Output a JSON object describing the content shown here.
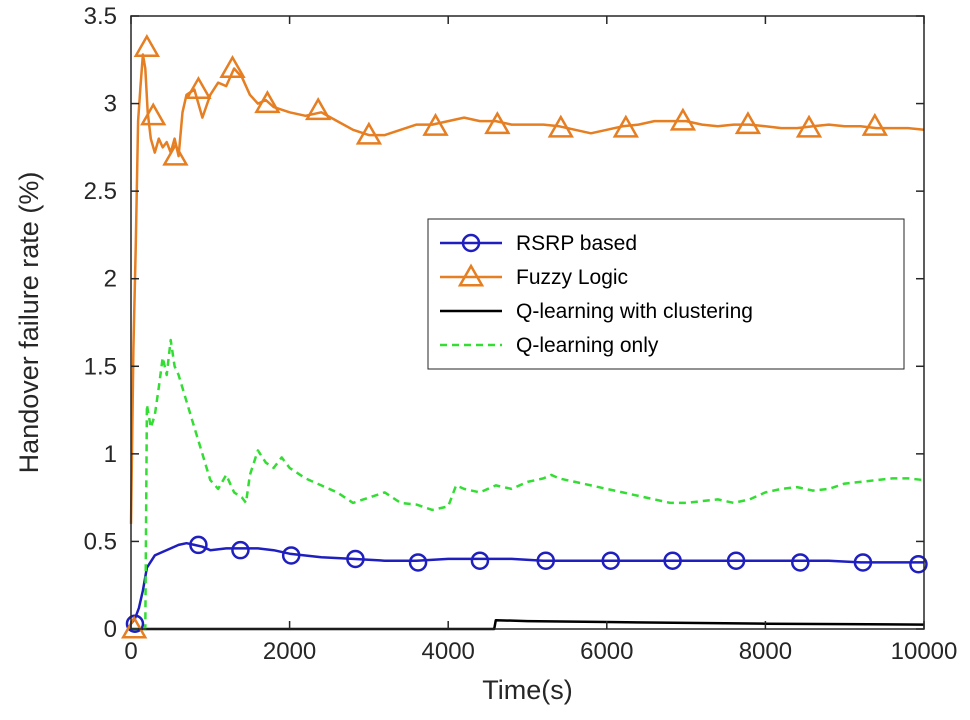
{
  "chart_data": {
    "type": "line",
    "title": "",
    "xlabel": "Time(s)",
    "ylabel": "Handover failure rate  (%)",
    "xlim": [
      0,
      10000
    ],
    "ylim": [
      0,
      3.5
    ],
    "xticks": [
      0,
      2000,
      4000,
      6000,
      8000,
      10000
    ],
    "xtick_labels": [
      "0",
      "2000",
      "4000",
      "6000",
      "8000",
      "10000"
    ],
    "yticks": [
      0,
      0.5,
      1,
      1.5,
      2,
      2.5,
      3,
      3.5
    ],
    "ytick_labels": [
      "0",
      "0.5",
      "1",
      "1.5",
      "2",
      "2.5",
      "3",
      "3.5"
    ],
    "grid": false,
    "legend_position": "center-right",
    "series": [
      {
        "name": "RSRP based",
        "color": "#1f1fbf",
        "line_style": "solid",
        "marker": "circle",
        "x": [
          0,
          50,
          100,
          150,
          200,
          300,
          400,
          500,
          600,
          700,
          800,
          900,
          1000,
          1200,
          1400,
          1600,
          1800,
          2000,
          2400,
          2800,
          3200,
          3600,
          4000,
          4400,
          4800,
          5200,
          5600,
          6000,
          6400,
          6800,
          7200,
          7600,
          8000,
          8400,
          8800,
          9200,
          9600,
          10000
        ],
        "y": [
          0.03,
          0.06,
          0.12,
          0.22,
          0.35,
          0.42,
          0.44,
          0.46,
          0.48,
          0.49,
          0.48,
          0.47,
          0.45,
          0.46,
          0.46,
          0.46,
          0.45,
          0.43,
          0.41,
          0.4,
          0.39,
          0.39,
          0.4,
          0.4,
          0.4,
          0.39,
          0.39,
          0.39,
          0.39,
          0.39,
          0.39,
          0.39,
          0.39,
          0.39,
          0.39,
          0.38,
          0.38,
          0.38
        ],
        "marker_x": [
          50,
          850,
          1380,
          2020,
          2830,
          3620,
          4400,
          5230,
          6050,
          6830,
          7630,
          8440,
          9230,
          9930
        ],
        "marker_y": [
          0.03,
          0.48,
          0.45,
          0.42,
          0.4,
          0.38,
          0.39,
          0.39,
          0.39,
          0.39,
          0.39,
          0.38,
          0.38,
          0.37
        ]
      },
      {
        "name": "Fuzzy Logic",
        "color": "#e67e22",
        "line_style": "solid",
        "marker": "triangle",
        "x": [
          0,
          30,
          60,
          90,
          120,
          150,
          180,
          210,
          250,
          300,
          350,
          400,
          450,
          500,
          550,
          600,
          650,
          700,
          800,
          900,
          1000,
          1100,
          1200,
          1300,
          1400,
          1500,
          1600,
          1700,
          1800,
          2000,
          2200,
          2400,
          2600,
          2800,
          3000,
          3200,
          3400,
          3600,
          3800,
          4000,
          4200,
          4400,
          4600,
          4800,
          5000,
          5200,
          5400,
          5600,
          5800,
          6000,
          6200,
          6400,
          6600,
          6800,
          7000,
          7200,
          7400,
          7600,
          7800,
          8000,
          8200,
          8400,
          8600,
          8800,
          9000,
          9200,
          9400,
          9600,
          9800,
          10000
        ],
        "y": [
          0.6,
          1.6,
          2.2,
          2.9,
          3.1,
          3.28,
          3.2,
          2.95,
          2.8,
          2.72,
          2.8,
          2.75,
          2.78,
          2.72,
          2.8,
          2.7,
          2.95,
          3.05,
          3.08,
          2.92,
          3.05,
          3.12,
          3.1,
          3.2,
          3.15,
          3.05,
          3.0,
          3.02,
          2.98,
          2.95,
          2.93,
          2.95,
          2.9,
          2.85,
          2.82,
          2.82,
          2.85,
          2.88,
          2.88,
          2.9,
          2.92,
          2.9,
          2.9,
          2.88,
          2.88,
          2.88,
          2.87,
          2.85,
          2.83,
          2.85,
          2.87,
          2.88,
          2.9,
          2.9,
          2.9,
          2.88,
          2.87,
          2.88,
          2.88,
          2.87,
          2.86,
          2.86,
          2.87,
          2.88,
          2.87,
          2.87,
          2.86,
          2.86,
          2.86,
          2.85
        ],
        "marker_x": [
          40,
          200,
          280,
          560,
          850,
          1280,
          1720,
          2360,
          3000,
          3840,
          4620,
          5420,
          6240,
          6960,
          7780,
          8550,
          9380
        ],
        "marker_y": [
          0.0,
          3.32,
          2.93,
          2.7,
          3.08,
          3.2,
          3.0,
          2.96,
          2.82,
          2.87,
          2.88,
          2.86,
          2.86,
          2.9,
          2.88,
          2.86,
          2.87
        ]
      },
      {
        "name": "Q-learning with clustering",
        "color": "#000000",
        "line_style": "solid",
        "marker": "none",
        "x": [
          0,
          4580,
          4600,
          5000,
          6000,
          7000,
          8000,
          9000,
          10000
        ],
        "y": [
          0.0,
          0.0,
          0.05,
          0.045,
          0.04,
          0.035,
          0.03,
          0.028,
          0.025
        ]
      },
      {
        "name": "Q-learning only",
        "color": "#33dd33",
        "line_style": "dashed",
        "marker": "none",
        "x": [
          0,
          180,
          200,
          250,
          300,
          350,
          400,
          450,
          500,
          550,
          600,
          700,
          800,
          900,
          1000,
          1100,
          1200,
          1300,
          1400,
          1450,
          1500,
          1600,
          1700,
          1800,
          1900,
          2000,
          2200,
          2400,
          2600,
          2800,
          3000,
          3200,
          3400,
          3600,
          3800,
          4000,
          4100,
          4200,
          4400,
          4600,
          4800,
          5000,
          5200,
          5300,
          5400,
          5600,
          5800,
          6000,
          6200,
          6400,
          6600,
          6800,
          7000,
          7200,
          7400,
          7600,
          7800,
          8000,
          8200,
          8400,
          8600,
          8800,
          9000,
          9200,
          9400,
          9600,
          9800,
          10000
        ],
        "y": [
          0.0,
          0.0,
          1.28,
          1.15,
          1.22,
          1.38,
          1.55,
          1.45,
          1.65,
          1.5,
          1.45,
          1.3,
          1.15,
          1.0,
          0.85,
          0.8,
          0.88,
          0.78,
          0.75,
          0.72,
          0.88,
          1.02,
          0.95,
          0.92,
          0.98,
          0.92,
          0.86,
          0.82,
          0.78,
          0.72,
          0.75,
          0.78,
          0.72,
          0.71,
          0.68,
          0.7,
          0.82,
          0.8,
          0.78,
          0.82,
          0.8,
          0.84,
          0.86,
          0.88,
          0.86,
          0.84,
          0.82,
          0.8,
          0.78,
          0.76,
          0.74,
          0.72,
          0.72,
          0.73,
          0.74,
          0.72,
          0.74,
          0.78,
          0.8,
          0.81,
          0.79,
          0.8,
          0.83,
          0.84,
          0.85,
          0.86,
          0.86,
          0.85
        ]
      }
    ]
  }
}
